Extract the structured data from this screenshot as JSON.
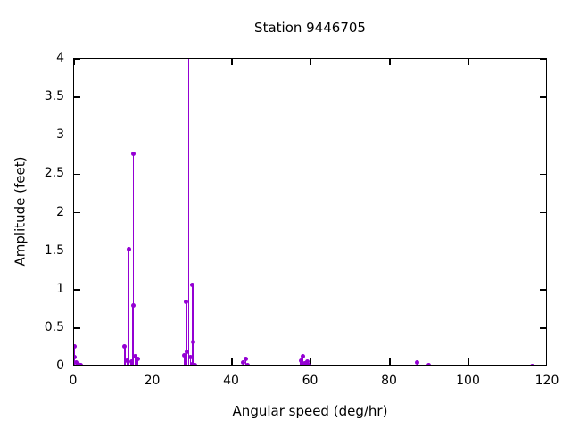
{
  "chart_data": {
    "type": "stem",
    "title": "Station 9446705",
    "xlabel": "Angular speed (deg/hr)",
    "ylabel": "Amplitude (feet)",
    "xlim": [
      0,
      120
    ],
    "ylim": [
      0,
      4
    ],
    "x_ticks": [
      0,
      20,
      40,
      60,
      80,
      100,
      120
    ],
    "y_ticks": [
      0,
      0.5,
      1,
      1.5,
      2,
      2.5,
      3,
      3.5,
      4
    ],
    "grid": false,
    "legend": "none",
    "series_color": "#9400d3",
    "marker": "filled-circle",
    "points": [
      [
        0.041,
        0.26
      ],
      [
        0.082,
        0.12
      ],
      [
        0.544,
        0.05
      ],
      [
        1.098,
        0.03
      ],
      [
        1.642,
        0.02
      ],
      [
        12.854,
        0.26
      ],
      [
        13.399,
        0.08
      ],
      [
        13.943,
        1.53
      ],
      [
        14.492,
        0.06
      ],
      [
        14.959,
        0.79
      ],
      [
        15.041,
        2.77
      ],
      [
        15.585,
        0.13
      ],
      [
        16.139,
        0.1
      ],
      [
        27.968,
        0.14
      ],
      [
        28.44,
        0.84
      ],
      [
        28.512,
        0.19
      ],
      [
        28.984,
        4.6
      ],
      [
        29.528,
        0.12
      ],
      [
        29.959,
        0.03
      ],
      [
        30.0,
        1.06
      ],
      [
        30.082,
        0.32
      ],
      [
        30.626,
        0.02
      ],
      [
        42.927,
        0.05
      ],
      [
        43.476,
        0.1
      ],
      [
        44.025,
        0.02
      ],
      [
        57.424,
        0.07
      ],
      [
        57.968,
        0.13
      ],
      [
        58.44,
        0.04
      ],
      [
        58.984,
        0.06
      ],
      [
        59.5,
        0.02
      ],
      [
        86.952,
        0.05
      ],
      [
        89.8,
        0.02
      ],
      [
        115.936,
        0.01
      ]
    ]
  }
}
